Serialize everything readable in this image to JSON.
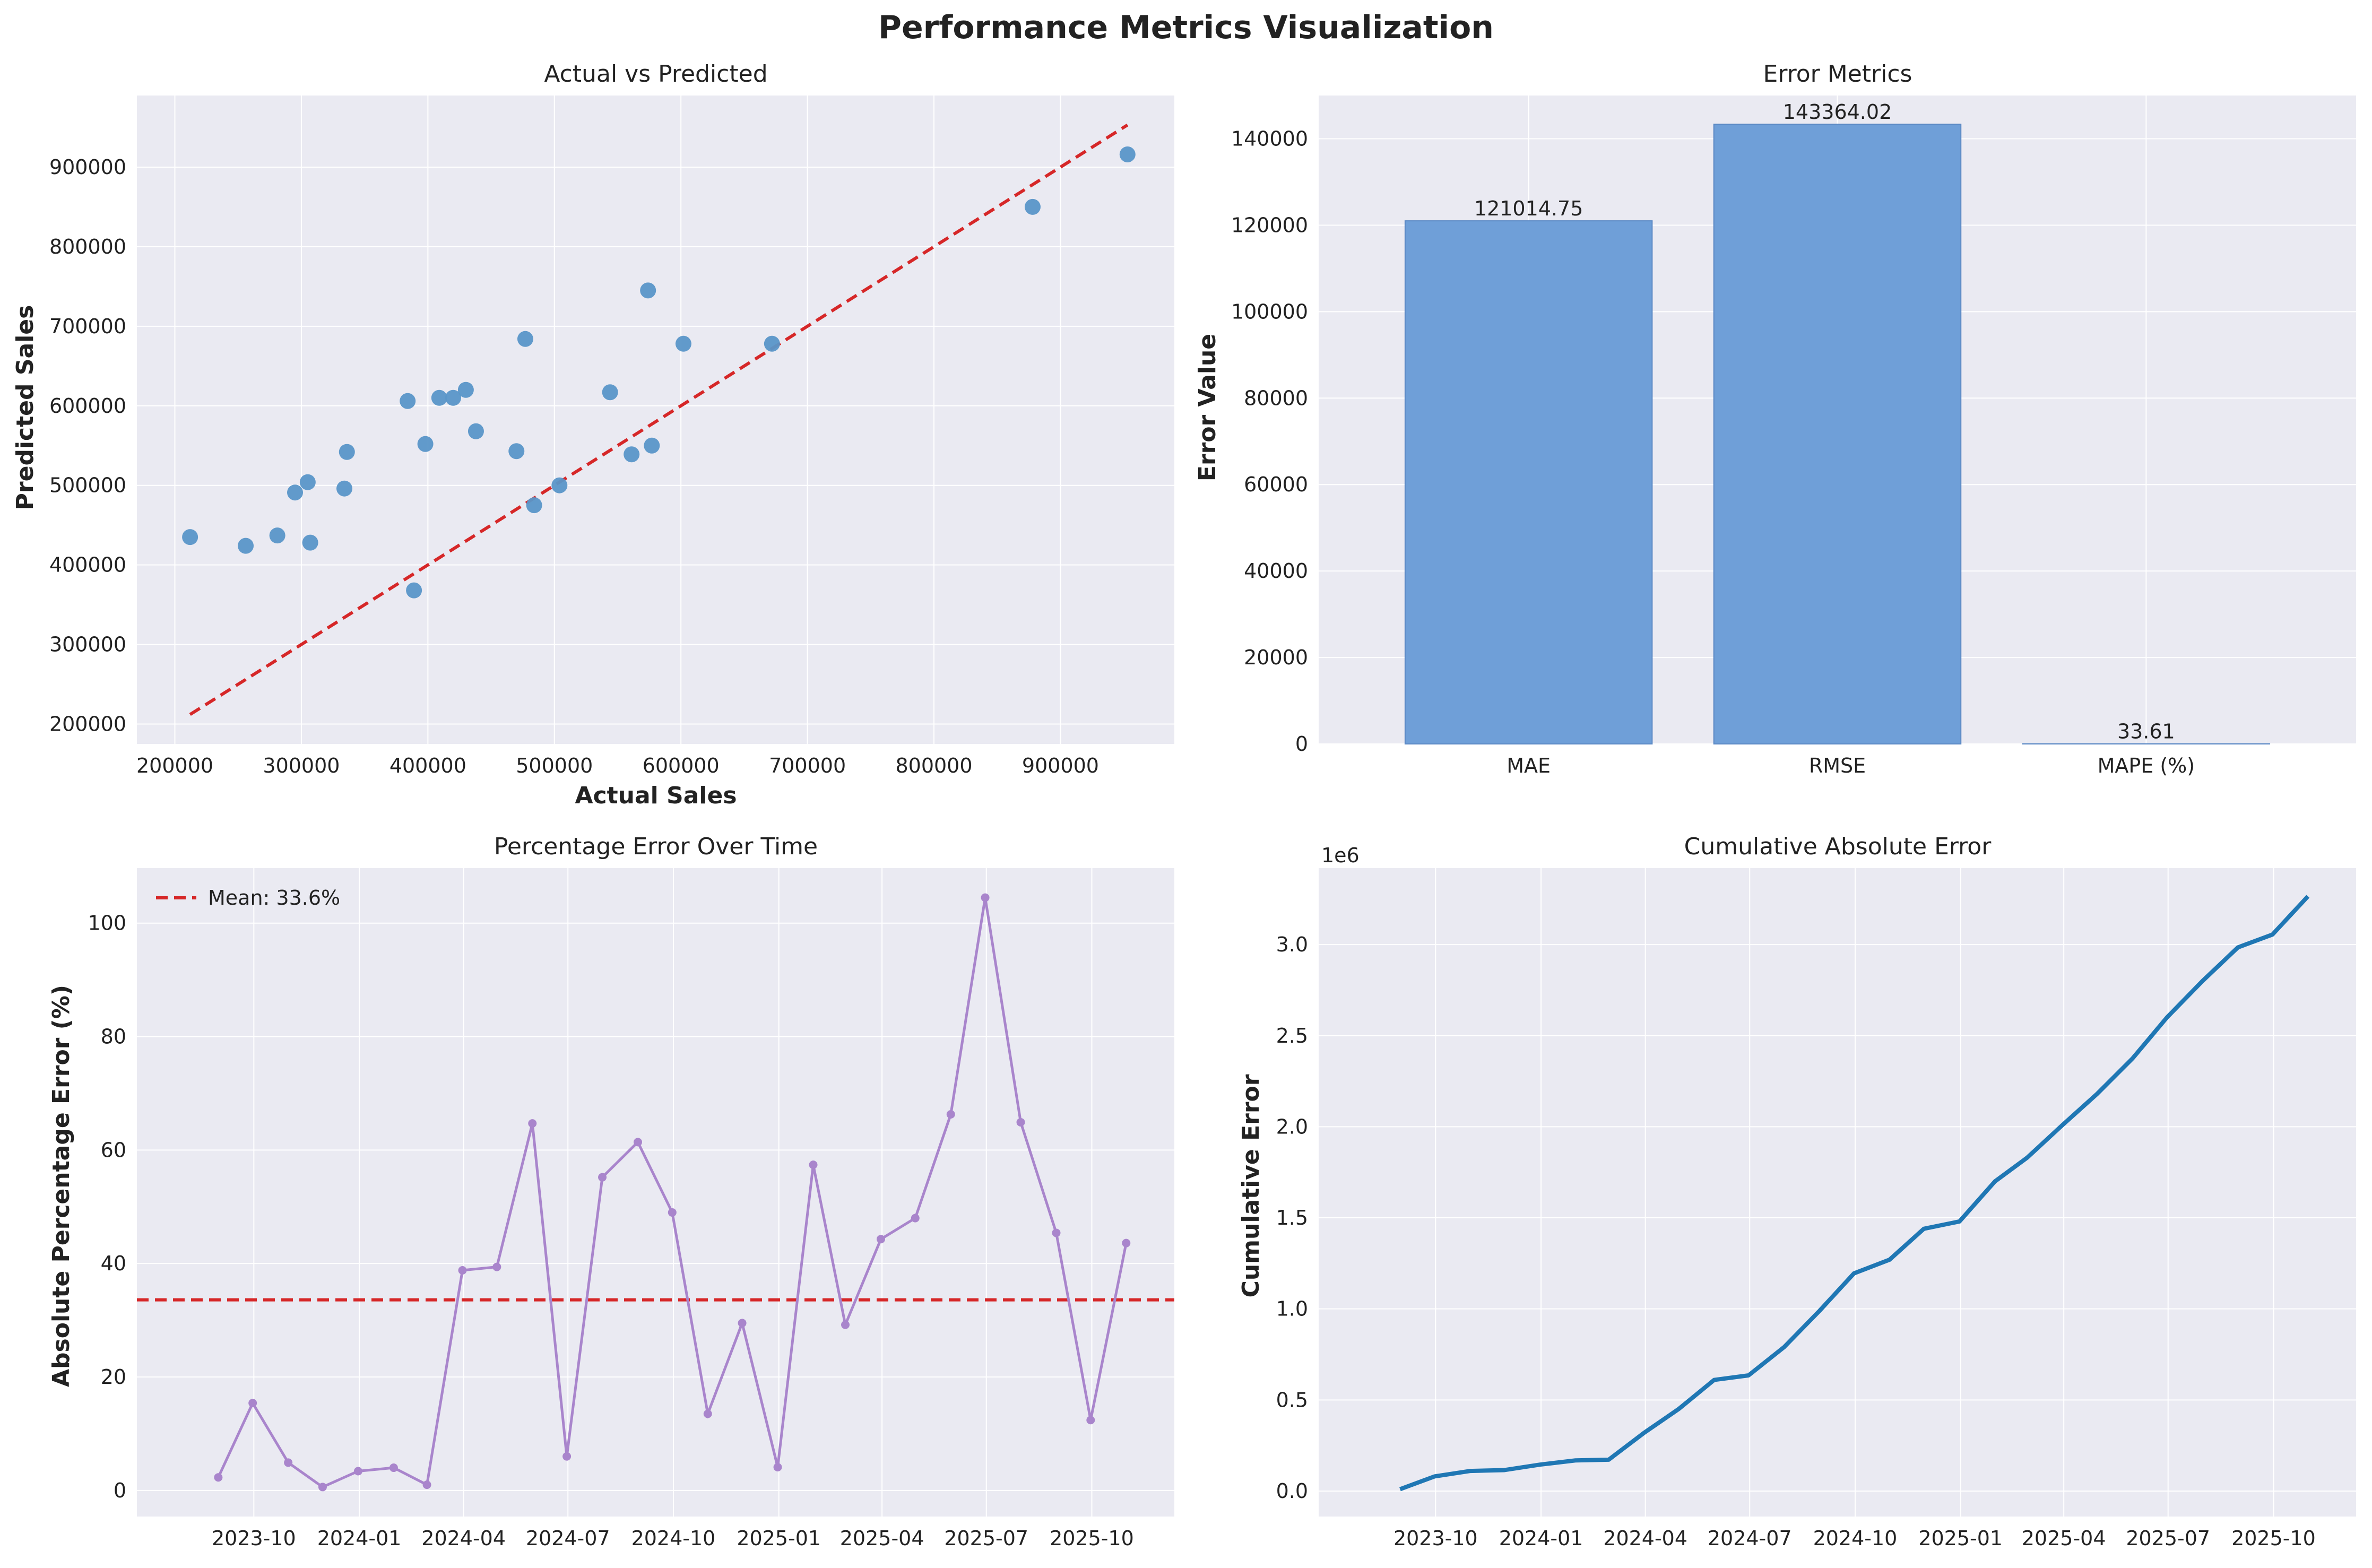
{
  "figure": {
    "title": "Performance Metrics Visualization"
  },
  "colors": {
    "plot_bg": "#eaeaf2",
    "grid": "#ffffff",
    "scatter": "#5a96c8",
    "ref_line": "#d62728",
    "bar": "#6f9fd8",
    "bar_edge": "#5a88c4",
    "pct_line": "#a985cc",
    "cum_line": "#1f77b4"
  },
  "chart_data": [
    {
      "id": "scatter",
      "type": "scatter",
      "title": "Actual vs Predicted",
      "xlabel": "Actual Sales",
      "ylabel": "Predicted Sales",
      "xlim": [
        170000,
        990000
      ],
      "ylim": [
        175000,
        990000
      ],
      "xticks": [
        200000,
        300000,
        400000,
        500000,
        600000,
        700000,
        800000,
        900000
      ],
      "yticks": [
        200000,
        300000,
        400000,
        500000,
        600000,
        700000,
        800000,
        900000
      ],
      "x": [
        212000,
        256000,
        281000,
        295000,
        305000,
        307000,
        334000,
        336000,
        384000,
        389000,
        398000,
        409000,
        420000,
        430000,
        438000,
        470000,
        477000,
        484000,
        504000,
        544000,
        561000,
        574000,
        577000,
        602000,
        672000,
        878000,
        953000
      ],
      "y": [
        435000,
        424000,
        437000,
        491000,
        504000,
        428000,
        496000,
        542000,
        606000,
        368000,
        552000,
        610000,
        610000,
        620000,
        568000,
        543000,
        684000,
        475000,
        500000,
        617000,
        539000,
        745000,
        550000,
        678000,
        678000,
        850000,
        916000
      ],
      "reference_line": [
        [
          212000,
          212000
        ],
        [
          953000,
          953000
        ]
      ]
    },
    {
      "id": "bars",
      "type": "bar",
      "title": "Error Metrics",
      "xlabel": "",
      "ylabel": "Error Value",
      "ylim": [
        0,
        150000
      ],
      "yticks": [
        0,
        20000,
        40000,
        60000,
        80000,
        100000,
        120000,
        140000
      ],
      "categories": [
        "MAE",
        "RMSE",
        "MAPE (%)"
      ],
      "values": [
        121014.75,
        143364.02,
        33.61
      ],
      "labels": [
        "121014.75",
        "143364.02",
        "33.61"
      ]
    },
    {
      "id": "pct",
      "type": "line",
      "title": "Percentage Error Over Time",
      "xlabel": "",
      "ylabel": "Absolute Percentage Error (%)",
      "ylim": [
        -4.6,
        109.7
      ],
      "yticks": [
        0,
        20,
        40,
        60,
        80,
        100
      ],
      "xlim": [
        "2023-06-21",
        "2025-12-12"
      ],
      "xticks": [
        "2023-10-01",
        "2024-01-01",
        "2024-04-01",
        "2024-07-01",
        "2024-10-01",
        "2025-01-01",
        "2025-04-01",
        "2025-07-01",
        "2025-10-01"
      ],
      "xtick_labels": [
        "2023-10",
        "2024-01",
        "2024-04",
        "2024-07",
        "2024-10",
        "2025-01",
        "2025-04",
        "2025-07",
        "2025-10"
      ],
      "x": [
        "2023-08-31",
        "2023-09-30",
        "2023-10-31",
        "2023-11-30",
        "2023-12-31",
        "2024-01-31",
        "2024-02-29",
        "2024-03-31",
        "2024-04-30",
        "2024-05-31",
        "2024-06-30",
        "2024-07-31",
        "2024-08-31",
        "2024-09-30",
        "2024-10-31",
        "2024-11-30",
        "2024-12-31",
        "2025-01-31",
        "2025-02-28",
        "2025-03-31",
        "2025-04-30",
        "2025-05-31",
        "2025-06-30",
        "2025-07-31",
        "2025-08-31",
        "2025-09-30",
        "2025-10-31"
      ],
      "y": [
        2.3,
        15.4,
        4.9,
        0.6,
        3.4,
        4.0,
        1.0,
        38.8,
        39.4,
        64.7,
        6.0,
        55.2,
        61.4,
        49.0,
        13.5,
        29.5,
        4.1,
        57.4,
        29.2,
        44.3,
        48.0,
        66.3,
        104.5,
        64.9,
        45.4,
        12.4,
        43.6
      ],
      "mean": 33.6,
      "legend": {
        "label": "Mean: 33.6%",
        "loc": "top-left"
      }
    },
    {
      "id": "cum",
      "type": "line",
      "title": "Cumulative Absolute Error",
      "xlabel": "",
      "ylabel": "Cumulative Error",
      "offset_label": "1e6",
      "ylim": [
        -0.14,
        3.42
      ],
      "yticks": [
        0.0,
        0.5,
        1.0,
        1.5,
        2.0,
        2.5,
        3.0
      ],
      "ytick_labels": [
        "0.0",
        "0.5",
        "1.0",
        "1.5",
        "2.0",
        "2.5",
        "3.0"
      ],
      "xlim": [
        "2023-06-21",
        "2025-12-12"
      ],
      "xticks": [
        "2023-10-01",
        "2024-01-01",
        "2024-04-01",
        "2024-07-01",
        "2024-10-01",
        "2025-01-01",
        "2025-04-01",
        "2025-07-01",
        "2025-10-01"
      ],
      "xtick_labels": [
        "2023-10",
        "2024-01",
        "2024-04",
        "2024-07",
        "2024-10",
        "2025-01",
        "2025-04",
        "2025-07",
        "2025-10"
      ],
      "x": [
        "2023-08-31",
        "2023-09-30",
        "2023-10-31",
        "2023-11-30",
        "2023-12-31",
        "2024-01-31",
        "2024-02-29",
        "2024-03-31",
        "2024-04-30",
        "2024-05-31",
        "2024-06-30",
        "2024-07-31",
        "2024-08-31",
        "2024-09-30",
        "2024-10-31",
        "2024-11-30",
        "2024-12-31",
        "2025-01-31",
        "2025-02-28",
        "2025-03-31",
        "2025-04-30",
        "2025-05-31",
        "2025-06-30",
        "2025-07-31",
        "2025-08-31",
        "2025-09-30",
        "2025-10-31"
      ],
      "y": [
        0.01,
        0.08,
        0.11,
        0.115,
        0.145,
        0.168,
        0.172,
        0.32,
        0.45,
        0.61,
        0.635,
        0.79,
        0.99,
        1.195,
        1.27,
        1.44,
        1.48,
        1.7,
        1.83,
        2.01,
        2.18,
        2.375,
        2.6,
        2.8,
        2.985,
        3.055,
        3.265
      ]
    }
  ]
}
